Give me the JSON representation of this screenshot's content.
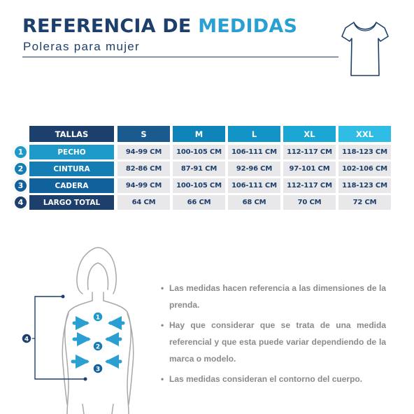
{
  "header": {
    "title_part1": "REFERENCIA DE",
    "title_part2": "MEDIDAS",
    "subtitle": "Poleras para mujer",
    "shirt_icon": "tshirt-icon"
  },
  "table": {
    "corner_header": "TALLAS",
    "sizes": [
      "S",
      "M",
      "L",
      "XL",
      "XXL"
    ],
    "rows": [
      {
        "num": "1",
        "label": "PECHO",
        "values": [
          "94-99 CM",
          "100-105 CM",
          "106-111 CM",
          "112-117 CM",
          "118-123 CM"
        ]
      },
      {
        "num": "2",
        "label": "CINTURA",
        "values": [
          "82-86 CM",
          "87-91 CM",
          "92-96 CM",
          "97-101 CM",
          "102-106 CM"
        ]
      },
      {
        "num": "3",
        "label": "CADERA",
        "values": [
          "94-99 CM",
          "100-105 CM",
          "106-111 CM",
          "112-117 CM",
          "118-123 CM"
        ]
      },
      {
        "num": "4",
        "label": "LARGO TOTAL",
        "values": [
          "64 CM",
          "66 CM",
          "68 CM",
          "70 CM",
          "72 CM"
        ]
      }
    ]
  },
  "diagram": {
    "markers": [
      "1",
      "2",
      "3",
      "4"
    ],
    "figure_icon": "body-silhouette-icon"
  },
  "notes": {
    "bullet": "•",
    "items": [
      "Las medidas hacen referencia a las dimensiones de la prenda.",
      "Hay que considerar que se trata de una medida referencial y que esta puede variar dependiendo de la marca o modelo.",
      "Las medidas consideran el contorno del cuerpo."
    ]
  },
  "colors": {
    "navy": "#1d3f6b",
    "accent_blue": "#2a9fd1",
    "header_gradient": [
      "#1a5a8e",
      "#0f84b8",
      "#1aa7d3",
      "#2fbde6"
    ],
    "row_colors": [
      "#1d9ac9",
      "#137db4",
      "#11619d",
      "#1d3f6b"
    ],
    "cell_bg": "#e8e8ea",
    "note_text": "#8a8a8c"
  }
}
